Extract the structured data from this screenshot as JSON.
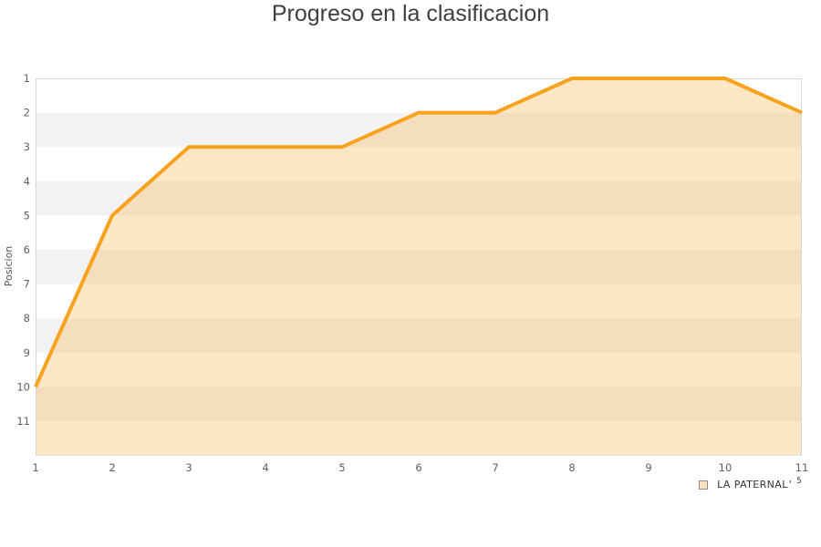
{
  "title": "Progreso en la clasificacion",
  "chart_data": {
    "type": "area",
    "title": "Progreso en la clasificacion",
    "xlabel": "",
    "ylabel": "Posicion",
    "x": [
      1,
      2,
      3,
      4,
      5,
      6,
      7,
      8,
      9,
      10,
      11
    ],
    "series": [
      {
        "name": "LA PATERNAL",
        "values": [
          10,
          5,
          3,
          3,
          3,
          2,
          2,
          1,
          1,
          1,
          2
        ]
      }
    ],
    "x_ticks": [
      "1",
      "2",
      "3",
      "4",
      "5",
      "6",
      "7",
      "8",
      "9",
      "10",
      "11"
    ],
    "y_ticks": [
      "1",
      "2",
      "3",
      "4",
      "5",
      "6",
      "7",
      "8",
      "9",
      "10",
      "11"
    ],
    "xlim": [
      1,
      11
    ],
    "ylim": [
      1,
      12
    ],
    "y_inverted": true,
    "grid": "alternating-horizontal-bands",
    "legend_position": "bottom-right",
    "colors": {
      "line": "#f9a21d",
      "fill": "rgba(249, 162, 29, 0.26)",
      "band": "#f3f3f5",
      "border": "#d6d6d6",
      "tick_text": "#5f5f5f",
      "title_text": "#3f3f3f",
      "legend_swatch_fill": "#f9e2bd",
      "legend_swatch_border": "#8c8c8c"
    }
  },
  "legend": {
    "suffix": "'",
    "superscript": "5"
  }
}
